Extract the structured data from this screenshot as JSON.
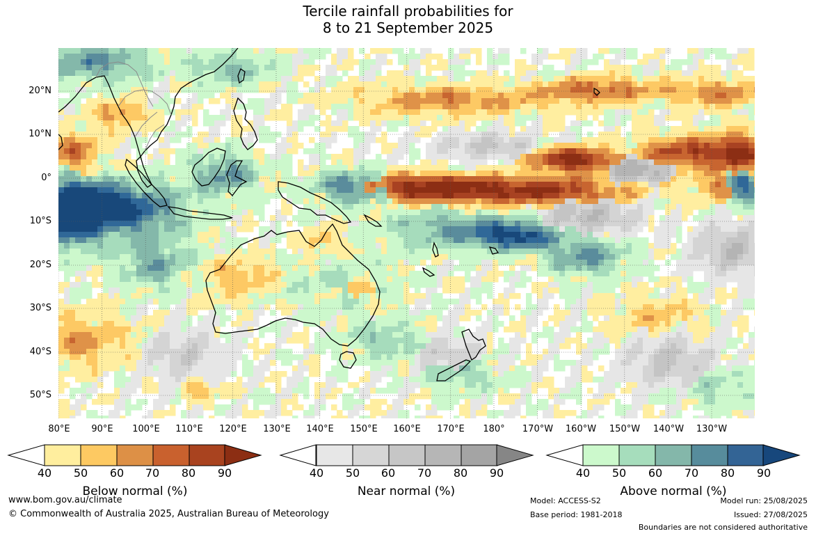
{
  "title": {
    "line1": "Tercile rainfall probabilities for",
    "line2": "8 to 21 September 2025"
  },
  "map": {
    "lat_labels": [
      "20°N",
      "10°N",
      "0°",
      "10°S",
      "20°S",
      "30°S",
      "40°S",
      "50°S"
    ],
    "lon_labels": [
      "80°E",
      "90°E",
      "100°E",
      "110°E",
      "120°E",
      "130°E",
      "140°E",
      "150°E",
      "160°E",
      "170°E",
      "180°",
      "170°W",
      "160°W",
      "150°W",
      "140°W",
      "130°W"
    ],
    "colors": {
      "below": [
        "#ffeea0",
        "#fdc964",
        "#df9248",
        "#c86530",
        "#a84222",
        "#8c2e14"
      ],
      "near": [
        "#e6e6e6",
        "#d4d4d4",
        "#c4c4c4",
        "#b4b4b4",
        "#a4a4a4",
        "#8a8a8a"
      ],
      "above": [
        "#ccf8cc",
        "#a6dcbc",
        "#84b8aa",
        "#5a8c9c",
        "#306898",
        "#18487a"
      ],
      "land_outline": "#000000",
      "border_outline": "#888888"
    }
  },
  "colorbars": [
    {
      "name": "below",
      "ticks": [
        "40",
        "50",
        "60",
        "70",
        "80",
        "90"
      ],
      "label": "Below normal (%)",
      "colors": [
        "#ffee9e",
        "#fdc962",
        "#dd9046",
        "#c9612e",
        "#a9431f",
        "#8c2e13"
      ]
    },
    {
      "name": "near",
      "ticks": [
        "40",
        "50",
        "60",
        "70",
        "80",
        "90"
      ],
      "label": "Near normal (%)",
      "colors": [
        "#e7e7e7",
        "#d6d6d6",
        "#c6c6c6",
        "#b6b6b6",
        "#a4a4a4",
        "#868686"
      ]
    },
    {
      "name": "above",
      "ticks": [
        "40",
        "50",
        "60",
        "70",
        "80",
        "90"
      ],
      "label": "Above normal (%)",
      "colors": [
        "#ccf9cc",
        "#a6ddbc",
        "#84b7aa",
        "#578c9c",
        "#336495",
        "#17477c"
      ]
    }
  ],
  "footer": {
    "website": "www.bom.gov.au/climate",
    "copyright": "© Commonwealth of Australia 2025, Australian Bureau of Meteorology",
    "model": "Model: ACCESS-S2",
    "base_period": "Base period: 1981-2018",
    "model_run": "Model run: 25/08/2025",
    "issued": "Issued: 27/08/2025",
    "disclaimer": "Boundaries are not considered authoritative"
  }
}
